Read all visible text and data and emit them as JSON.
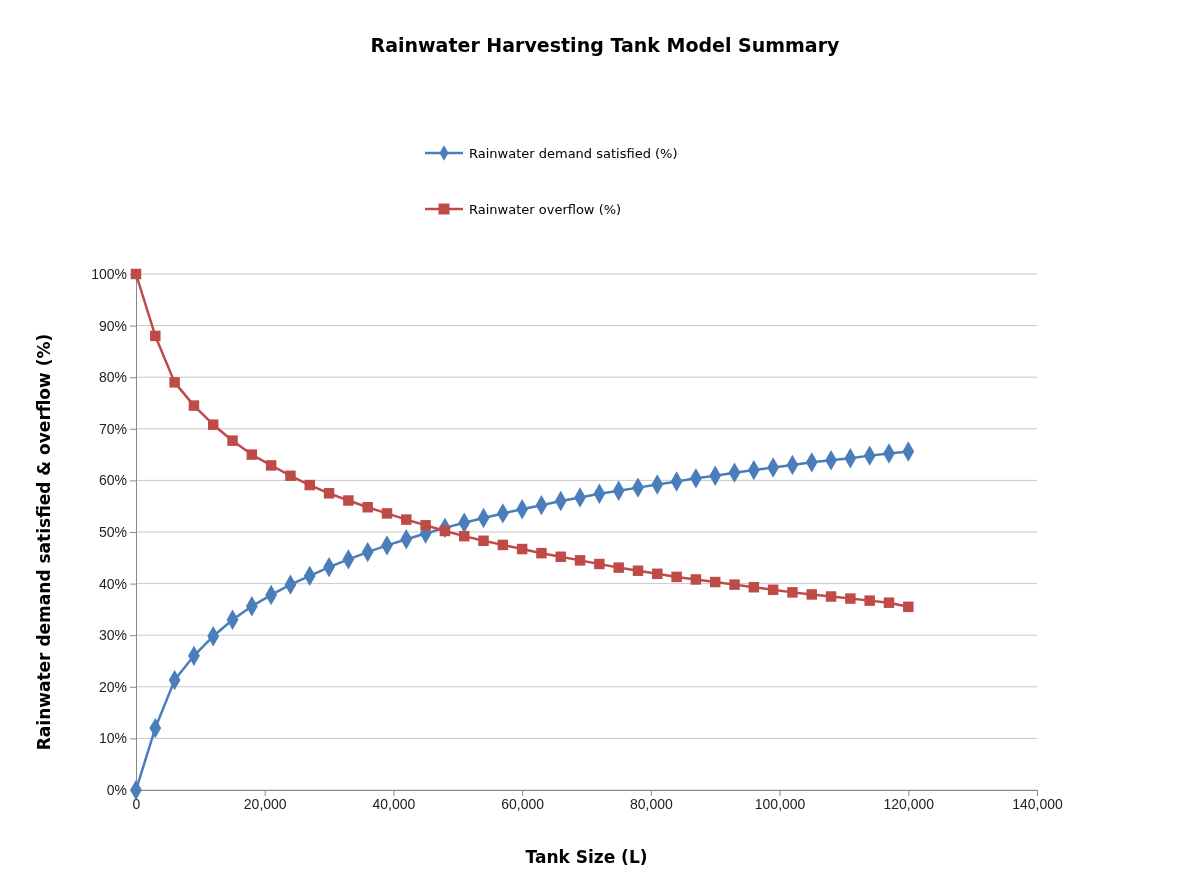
{
  "chart_data": {
    "type": "line",
    "title": "Rainwater Harvesting Tank Model Summary",
    "xlabel": "Tank Size (L)",
    "ylabel": "Rainwater demand satisfied & overflow (%)",
    "x": [
      0,
      3000,
      6000,
      9000,
      12000,
      15000,
      18000,
      21000,
      24000,
      27000,
      30000,
      33000,
      36000,
      39000,
      42000,
      45000,
      48000,
      51000,
      54000,
      57000,
      60000,
      63000,
      66000,
      69000,
      72000,
      75000,
      78000,
      81000,
      84000,
      87000,
      90000,
      93000,
      96000,
      99000,
      102000,
      105000,
      108000,
      111000,
      114000,
      117000,
      120000
    ],
    "series": [
      {
        "name": "Rainwater demand satisfied (%)",
        "color": "#4a7ebb",
        "marker": "diamond",
        "values": [
          0,
          12,
          21.3,
          26,
          29.8,
          33,
          35.6,
          37.8,
          39.8,
          41.5,
          43.2,
          44.7,
          46.1,
          47.4,
          48.6,
          49.7,
          50.8,
          51.8,
          52.7,
          53.6,
          54.4,
          55.2,
          56,
          56.7,
          57.4,
          58,
          58.6,
          59.2,
          59.8,
          60.4,
          60.9,
          61.5,
          62,
          62.5,
          63,
          63.5,
          63.9,
          64.3,
          64.8,
          65.2,
          65.6
        ]
      },
      {
        "name": "Rainwater overflow (%)",
        "color": "#be4b48",
        "marker": "square",
        "values": [
          100,
          88,
          79,
          74.5,
          70.8,
          67.7,
          65,
          62.9,
          60.9,
          59.1,
          57.5,
          56.1,
          54.8,
          53.6,
          52.4,
          51.3,
          50.2,
          49.2,
          48.3,
          47.5,
          46.7,
          45.9,
          45.2,
          44.5,
          43.8,
          43.1,
          42.5,
          41.9,
          41.3,
          40.8,
          40.3,
          39.8,
          39.3,
          38.8,
          38.3,
          37.9,
          37.5,
          37.1,
          36.7,
          36.3,
          35.5
        ]
      }
    ],
    "xlim": [
      0,
      140000
    ],
    "xticks": [
      0,
      {
        "value": 20000,
        "label": "20,000"
      },
      {
        "value": 40000,
        "label": "40,000"
      },
      {
        "value": 60000,
        "label": "60,000"
      },
      {
        "value": 80000,
        "label": "80,000"
      },
      {
        "value": 100000,
        "label": "100,000"
      },
      {
        "value": 120000,
        "label": "120,000"
      },
      {
        "value": 140000,
        "label": "140,000"
      }
    ],
    "ylim": [
      0,
      100
    ],
    "yticks": [
      {
        "value": 0,
        "label": "0%"
      },
      {
        "value": 10,
        "label": "10%"
      },
      {
        "value": 20,
        "label": "20%"
      },
      {
        "value": 30,
        "label": "30%"
      },
      {
        "value": 40,
        "label": "40%"
      },
      {
        "value": 50,
        "label": "50%"
      },
      {
        "value": 60,
        "label": "60%"
      },
      {
        "value": 70,
        "label": "70%"
      },
      {
        "value": 80,
        "label": "80%"
      },
      {
        "value": 90,
        "label": "90%"
      },
      {
        "value": 100,
        "label": "100%"
      }
    ],
    "grid": "y",
    "legend": "top",
    "line_style": "solid"
  }
}
